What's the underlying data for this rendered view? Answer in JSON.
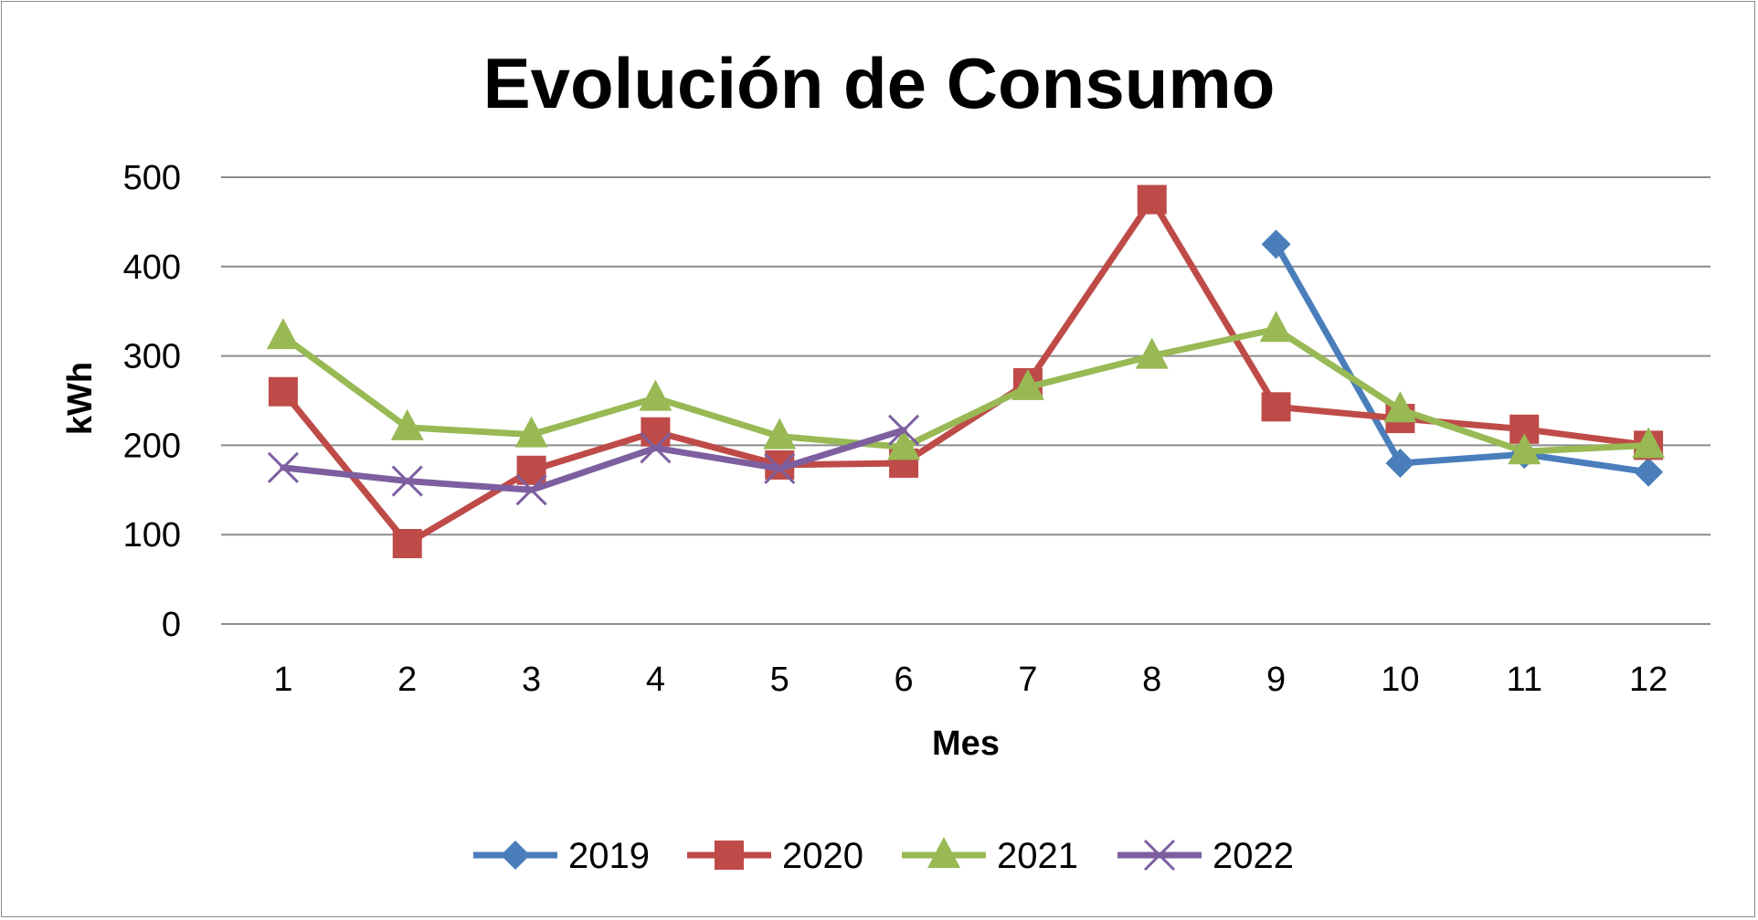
{
  "chart_data": {
    "type": "line",
    "title": "Evolución de Consumo",
    "xlabel": "Mes",
    "ylabel": "kWh",
    "categories": [
      "1",
      "2",
      "3",
      "4",
      "5",
      "6",
      "7",
      "8",
      "9",
      "10",
      "11",
      "12"
    ],
    "ylim": [
      0,
      500
    ],
    "yticks": [
      "0",
      "100",
      "200",
      "300",
      "400",
      "500"
    ],
    "grid": true,
    "legend_position": "bottom",
    "series": [
      {
        "name": "2019",
        "color": "#4a7ebb",
        "marker": "diamond",
        "values": [
          null,
          null,
          null,
          null,
          null,
          null,
          null,
          null,
          425,
          180,
          190,
          170
        ]
      },
      {
        "name": "2020",
        "color": "#be4b48",
        "marker": "square",
        "values": [
          260,
          90,
          172,
          215,
          178,
          180,
          270,
          475,
          243,
          230,
          218,
          200
        ]
      },
      {
        "name": "2021",
        "color": "#98b954",
        "marker": "triangle",
        "values": [
          322,
          220,
          212,
          253,
          210,
          198,
          265,
          300,
          330,
          240,
          193,
          200
        ]
      },
      {
        "name": "2022",
        "color": "#7d5fa0",
        "marker": "x",
        "values": [
          175,
          160,
          150,
          197,
          174,
          217,
          null,
          null,
          null,
          null,
          null,
          null
        ]
      }
    ]
  }
}
